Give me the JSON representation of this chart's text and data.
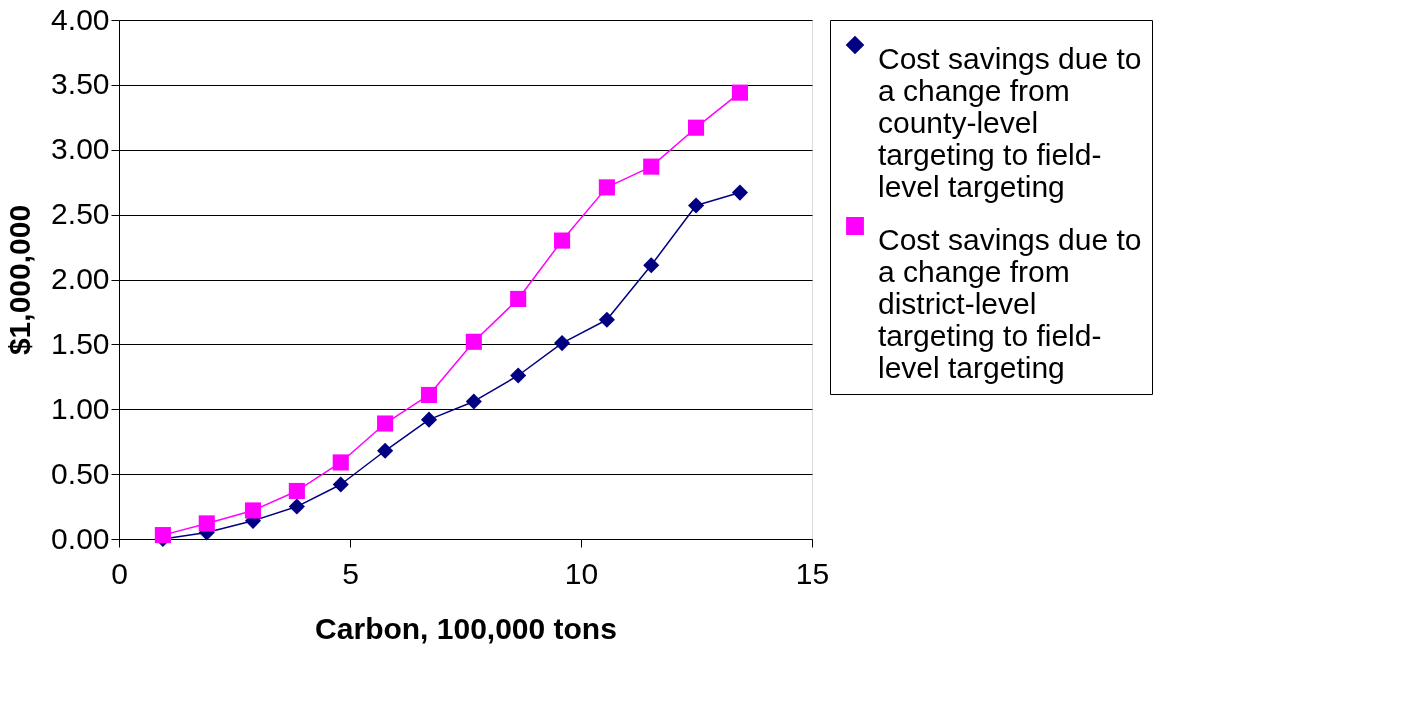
{
  "chart_data": {
    "type": "line",
    "xlabel": "Carbon, 100,000 tons",
    "ylabel": "$1,000,000",
    "xlim": [
      0,
      15
    ],
    "xticks": [
      0,
      5,
      10,
      15
    ],
    "ylim": [
      0,
      4
    ],
    "yticks": [
      {
        "value": 0,
        "label": "0.00"
      },
      {
        "value": 0.5,
        "label": "0.50"
      },
      {
        "value": 1,
        "label": "1.00"
      },
      {
        "value": 1.5,
        "label": "1.50"
      },
      {
        "value": 2,
        "label": "2.00"
      },
      {
        "value": 2.5,
        "label": "2.50"
      },
      {
        "value": 3,
        "label": "3.00"
      },
      {
        "value": 3.5,
        "label": "3.50"
      },
      {
        "value": 4,
        "label": "4.00"
      }
    ],
    "x": [
      0.95,
      1.9,
      2.9,
      3.85,
      4.8,
      5.76,
      6.71,
      7.68,
      8.64,
      9.59,
      10.56,
      11.52,
      12.49,
      13.44
    ],
    "series": [
      {
        "name": "Cost savings due to a change from county-level targeting to field-level targeting",
        "color": "#000080",
        "marker": "diamond",
        "values": [
          0.0,
          0.05,
          0.14,
          0.25,
          0.42,
          0.68,
          0.92,
          1.06,
          1.26,
          1.51,
          1.69,
          2.11,
          2.57,
          2.67
        ]
      },
      {
        "name": "Cost savings due to a change from district-level targeting to field-level targeting",
        "color": "#ff00ff",
        "marker": "square",
        "values": [
          0.03,
          0.12,
          0.22,
          0.37,
          0.59,
          0.89,
          1.11,
          1.52,
          1.85,
          2.3,
          2.71,
          2.87,
          3.17,
          3.44
        ]
      }
    ],
    "grid": "y",
    "legend": "right",
    "line_style": "solid"
  }
}
